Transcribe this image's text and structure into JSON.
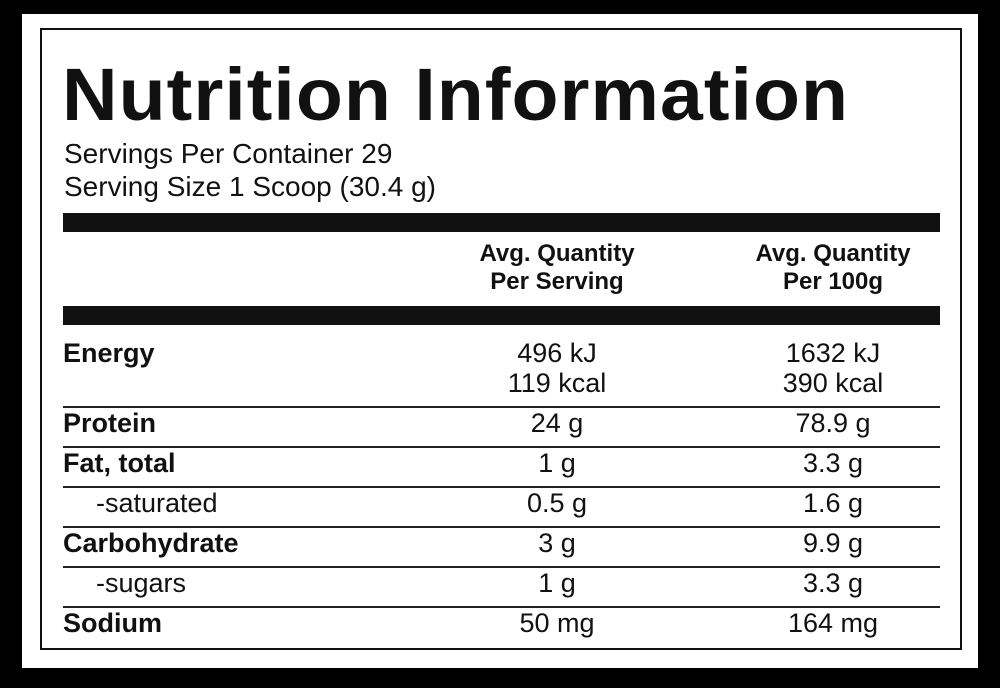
{
  "header": {
    "title": "Nutrition Information",
    "servings_per_container": "Servings Per Container 29",
    "serving_size": "Serving Size 1 Scoop (30.4 g)"
  },
  "table": {
    "columns": [
      [
        "Avg. Quantity",
        "Per Serving"
      ],
      [
        "Avg. Quantity",
        "Per 100g"
      ]
    ],
    "rows": [
      [
        "Energy",
        [
          "496 kJ",
          "119 kcal"
        ],
        [
          "1632 kJ",
          "390 kcal"
        ]
      ],
      [
        "Protein",
        "24 g",
        "78.9 g"
      ],
      [
        "Fat, total",
        "1 g",
        "3.3 g"
      ],
      [
        "-saturated",
        "0.5 g",
        "1.6 g"
      ],
      [
        "Carbohydrate",
        "3 g",
        "9.9 g"
      ],
      [
        "-sugars",
        "1 g",
        "3.3 g"
      ],
      [
        "Sodium",
        "50 mg",
        "164 mg"
      ]
    ]
  }
}
